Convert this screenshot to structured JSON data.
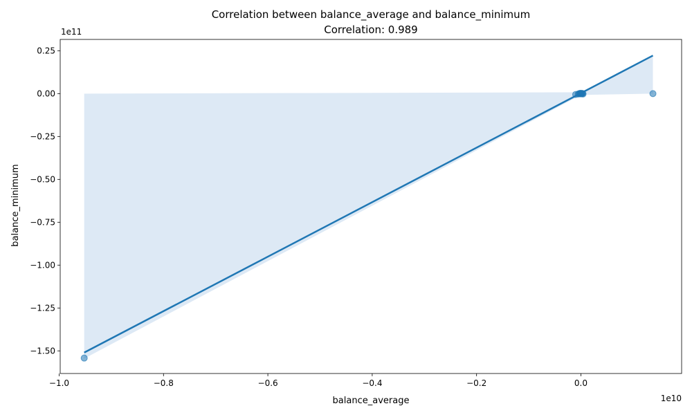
{
  "chart_data": {
    "type": "scatter",
    "title": "Correlation between balance_average and balance_minimum",
    "subtitle": "Correlation: 0.989",
    "xlabel": "balance_average",
    "ylabel": "balance_minimum",
    "x_offset_label": "1e10",
    "y_offset_label": "1e11",
    "xlim": [
      -0.998,
      0.193
    ],
    "ylim": [
      -1.632,
      0.316
    ],
    "x_ticks": [
      {
        "value": -1.0,
        "label": "−1.0"
      },
      {
        "value": -0.8,
        "label": "−0.8"
      },
      {
        "value": -0.6,
        "label": "−0.6"
      },
      {
        "value": -0.4,
        "label": "−0.4"
      },
      {
        "value": -0.2,
        "label": "−0.2"
      },
      {
        "value": 0.0,
        "label": "0.0"
      }
    ],
    "y_ticks": [
      {
        "value": 0.25,
        "label": "0.25"
      },
      {
        "value": 0.0,
        "label": "0.00"
      },
      {
        "value": -0.25,
        "label": "−0.25"
      },
      {
        "value": -0.5,
        "label": "−0.50"
      },
      {
        "value": -0.75,
        "label": "−0.75"
      },
      {
        "value": -1.0,
        "label": "−1.00"
      },
      {
        "value": -1.25,
        "label": "−1.25"
      },
      {
        "value": -1.5,
        "label": "−1.50"
      }
    ],
    "grid": false,
    "points": [
      {
        "x": -0.952,
        "y": -1.542
      },
      {
        "x": -0.01,
        "y": -0.005
      },
      {
        "x": -0.005,
        "y": -0.002
      },
      {
        "x": -0.003,
        "y": 0.0
      },
      {
        "x": -0.002,
        "y": 0.001
      },
      {
        "x": -0.001,
        "y": -0.001
      },
      {
        "x": 0.0,
        "y": 0.0
      },
      {
        "x": 0.0,
        "y": 0.002
      },
      {
        "x": 0.001,
        "y": -0.001
      },
      {
        "x": 0.002,
        "y": 0.0
      },
      {
        "x": 0.003,
        "y": 0.001
      },
      {
        "x": 0.004,
        "y": -0.002
      },
      {
        "x": 0.138,
        "y": 0.0
      }
    ],
    "regression_line": {
      "x": [
        -0.952,
        0.138
      ],
      "y": [
        -1.51,
        0.222
      ]
    },
    "confidence_band": {
      "x": [
        -0.952,
        -0.952,
        0.0,
        0.138,
        0.138,
        0.0
      ],
      "y": [
        0.0,
        -1.545,
        -0.008,
        0.0,
        0.222,
        0.008
      ]
    },
    "colors": {
      "line": "#1f77b4",
      "points": "#1f77b4",
      "band": "#dde9f5"
    }
  }
}
